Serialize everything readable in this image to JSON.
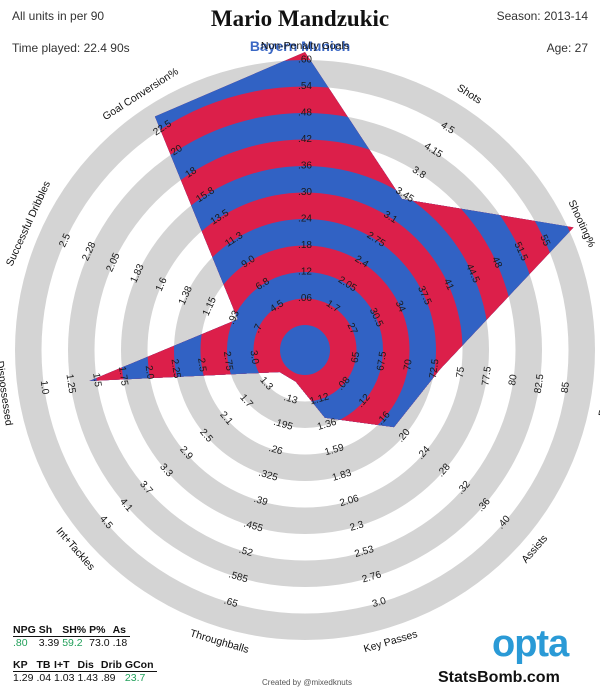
{
  "header": {
    "units_note": "All units in per 90",
    "time_played": "Time played: 22.4 90s",
    "player": "Mario Mandzukic",
    "team": "Bayern Munich",
    "season": "Season: 2013-14",
    "age": "Age: 27"
  },
  "chart_data": {
    "type": "radar",
    "title": "Mario Mandzukic",
    "subtitle": "Bayern Munich",
    "axes": [
      {
        "name": "Non-Penalty Goals",
        "ticks": [
          "",
          ".06",
          ".12",
          ".18",
          ".24",
          ".30",
          ".36",
          ".42",
          ".48",
          ".54",
          ".60"
        ],
        "value": 0.8,
        "display_value": ".80"
      },
      {
        "name": "Shots",
        "ticks": [
          "",
          "1.7",
          "2.05",
          "2.4",
          "2.75",
          "3.1",
          "3.45",
          "3.8",
          "4.15",
          "4.5"
        ],
        "value": 3.39,
        "display_value": "3.39"
      },
      {
        "name": "Shooting%",
        "ticks": [
          "",
          "27",
          "30.5",
          "34",
          "37.5",
          "41",
          "44.5",
          "48",
          "51.5",
          "55"
        ],
        "value": 59.2,
        "display_value": "59.2"
      },
      {
        "name": "Passing%",
        "ticks": [
          "",
          "65",
          "67.5",
          "70",
          "72.5",
          "75",
          "77.5",
          "80",
          "82.5",
          "85"
        ],
        "value": 73.0,
        "display_value": "73.0"
      },
      {
        "name": "Assists",
        "ticks": [
          "",
          ".08",
          ".12",
          ".16",
          ".20",
          ".24",
          ".28",
          ".32",
          ".36",
          ".40"
        ],
        "value": 0.18,
        "display_value": ".18"
      },
      {
        "name": "Key Passes",
        "ticks": [
          "",
          "1.12",
          "1.36",
          "1.59",
          "1.83",
          "2.06",
          "2.3",
          "2.53",
          "2.76",
          "3.0"
        ],
        "value": 1.29,
        "display_value": "1.29"
      },
      {
        "name": "Throughballs",
        "ticks": [
          "",
          ".13",
          ".195",
          ".26",
          ".325",
          ".39",
          ".455",
          ".52",
          ".585",
          ".65"
        ],
        "value": 0.04,
        "display_value": ".04"
      },
      {
        "name": "Int+Tackles",
        "ticks": [
          "",
          "1.3",
          "1.7",
          "2.1",
          "2.5",
          "2.9",
          "3.3",
          "3.7",
          "4.1",
          "4.5"
        ],
        "value": 1.03,
        "display_value": "1.03"
      },
      {
        "name": "Dispossessed",
        "ticks": [
          "",
          "3.0",
          "2.75",
          "2.5",
          "2.25",
          "2.0",
          "1.75",
          "1.5",
          "1.25",
          "1.0"
        ],
        "value": 1.43,
        "display_value": "1.43",
        "inverted": true
      },
      {
        "name": "Successful Dribbles",
        "ticks": [
          "",
          ".7",
          ".93",
          "1.15",
          "1.38",
          "1.6",
          "1.83",
          "2.05",
          "2.28",
          "2.5"
        ],
        "value": 0.89,
        "display_value": ".89"
      },
      {
        "name": "Goal Conversion%",
        "ticks": [
          "",
          "4.5",
          "6.8",
          "9.0",
          "11.3",
          "13.5",
          "15.8",
          "18",
          "20",
          "22.5"
        ],
        "value": 23.7,
        "display_value": "23.7"
      }
    ],
    "table1": {
      "headers": [
        "NPG",
        "Sh",
        "SH%",
        "P%",
        "As"
      ],
      "values": [
        ".80",
        "3.39",
        "59.2",
        "73.0",
        ".18"
      ]
    },
    "table2": {
      "headers": [
        "KP",
        "TB",
        "I+T",
        "Dis",
        "Drib",
        "GCon"
      ],
      "values": [
        "1.29",
        ".04",
        "1.03",
        "1.43",
        ".89",
        "23.7"
      ]
    },
    "colors": {
      "red": "#dc1f4a",
      "blue": "#3162c4",
      "grey": "#d4d4d4",
      "highlight": "#21a05a"
    },
    "highlighted": [
      "59.2",
      "23.7"
    ]
  },
  "footer": {
    "credit": "Created by @mixedknuts",
    "opta": "opta",
    "statsbomb": "StatsBomb.com"
  }
}
